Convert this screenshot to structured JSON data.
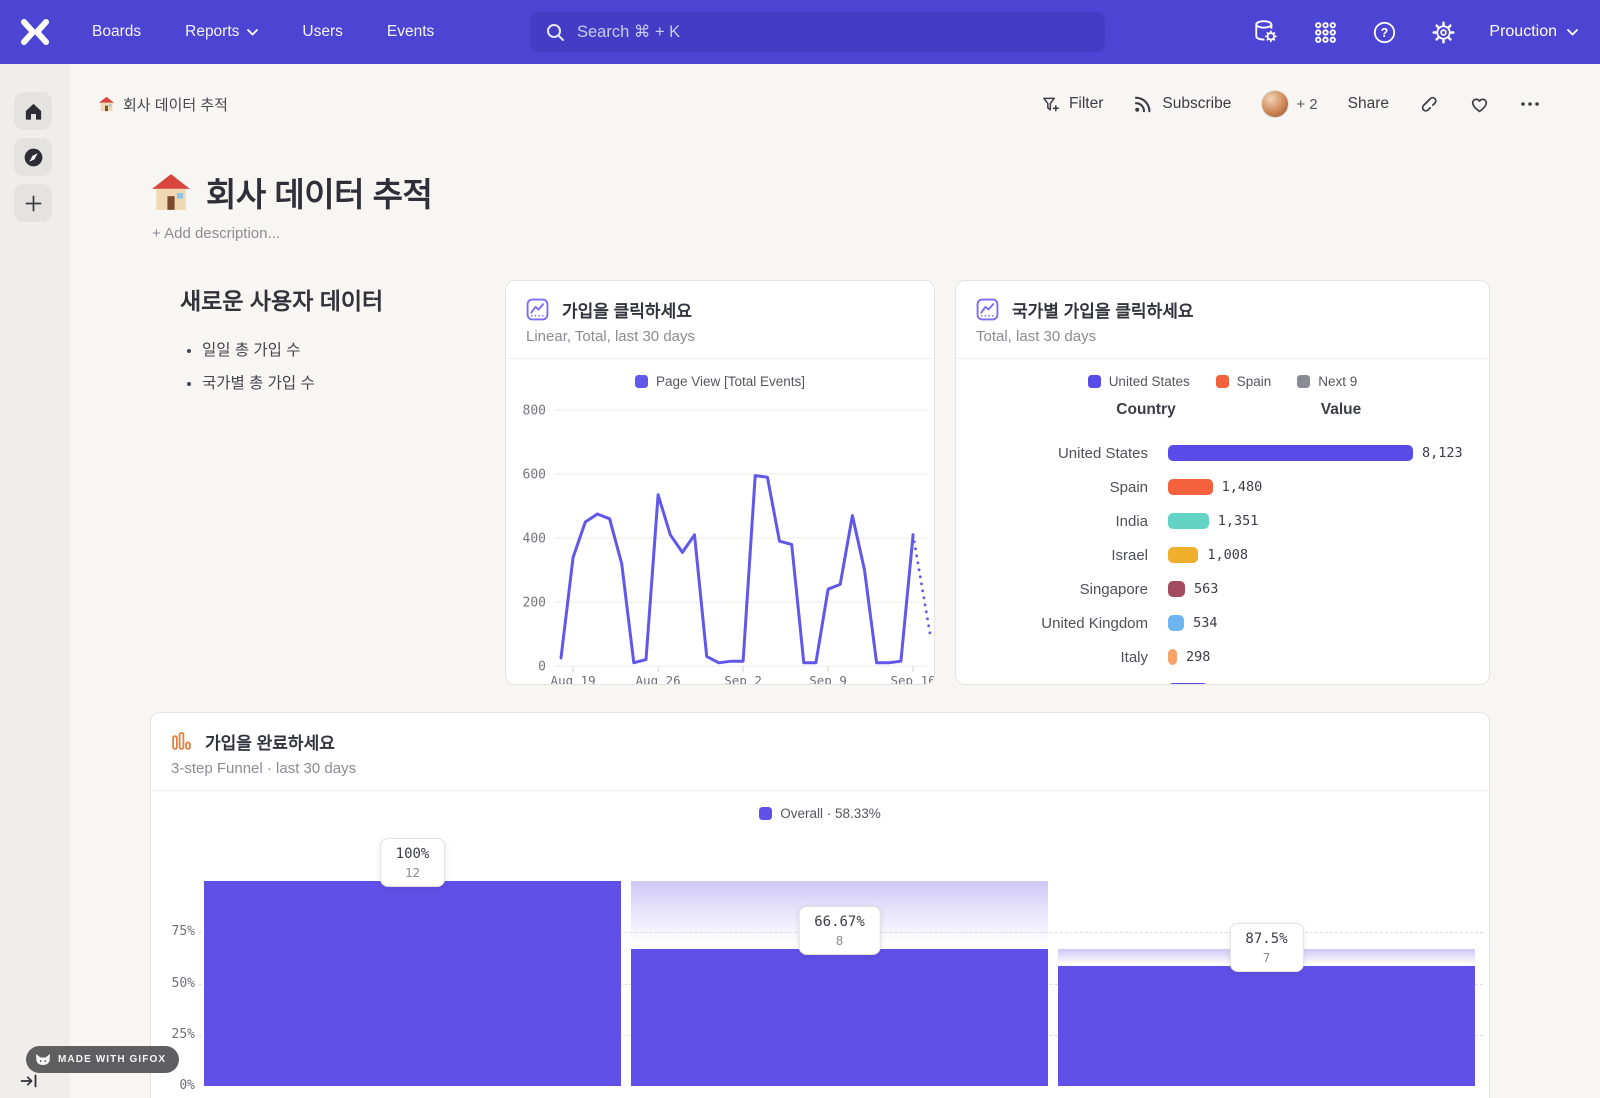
{
  "nav": {
    "items": [
      {
        "label": "Boards"
      },
      {
        "label": "Reports"
      },
      {
        "label": "Users"
      },
      {
        "label": "Events"
      }
    ],
    "search_placeholder": "Search  ⌘ + K",
    "project": "Prouction",
    "bg_color": "#4C45D4"
  },
  "board_bar": {
    "breadcrumb": "회사 데이터 추적",
    "filter": "Filter",
    "subscribe": "Subscribe",
    "avatar_more": "+ 2",
    "share": "Share"
  },
  "page": {
    "title": "회사 데이터 추적",
    "description_placeholder": "+ Add description..."
  },
  "text_card": {
    "heading": "새로운 사용자 데이터",
    "bullets": [
      "일일 총 가입 수",
      "국가별 총 가입 수"
    ]
  },
  "chart_data": [
    {
      "type": "line",
      "title": "가입을 클릭하세요",
      "subtitle": "Linear, Total, last 30 days",
      "legend": "Page View [Total Events]",
      "line_color": "#6157E8",
      "grid": true,
      "ylim": [
        0,
        800
      ],
      "y_ticks": [
        0,
        200,
        400,
        600,
        800
      ],
      "x_tick_labels": [
        "Aug 19",
        "Aug 26",
        "Sep 2",
        "Sep 9",
        "Sep 16"
      ],
      "x_tick_indices": [
        1,
        8,
        15,
        22,
        29
      ],
      "values": [
        25,
        340,
        450,
        475,
        460,
        320,
        10,
        20,
        535,
        410,
        355,
        410,
        30,
        10,
        15,
        15,
        595,
        590,
        390,
        380,
        10,
        10,
        240,
        255,
        470,
        300,
        10,
        10,
        15,
        410
      ],
      "incomplete_tail_value": 100
    },
    {
      "type": "bar",
      "orientation": "horizontal",
      "title": "국가별 가입을 클릭하세요",
      "subtitle": "Total, last 30 days",
      "legend": [
        {
          "label": "United States",
          "color": "#584BE8"
        },
        {
          "label": "Spain",
          "color": "#F4613D"
        },
        {
          "label": "Next 9",
          "color": "#8A8A93"
        }
      ],
      "columns": [
        "Country",
        "Value"
      ],
      "xmax": 8123,
      "rows": [
        {
          "label": "United States",
          "value": 8123,
          "value_label": "8,123",
          "color": "#584BE8"
        },
        {
          "label": "Spain",
          "value": 1480,
          "value_label": "1,480",
          "color": "#F4613D"
        },
        {
          "label": "India",
          "value": 1351,
          "value_label": "1,351",
          "color": "#62D3C4"
        },
        {
          "label": "Israel",
          "value": 1008,
          "value_label": "1,008",
          "color": "#EFAF2D"
        },
        {
          "label": "Singapore",
          "value": 563,
          "value_label": "563",
          "color": "#A34B60"
        },
        {
          "label": "United Kingdom",
          "value": 534,
          "value_label": "534",
          "color": "#6FB5F1"
        },
        {
          "label": "Italy",
          "value": 298,
          "value_label": "298",
          "color": "#F8A468"
        }
      ]
    },
    {
      "type": "bar",
      "variant": "funnel",
      "title": "가입을 완료하세요",
      "subtitle": "3-step Funnel · last 30 days",
      "legend": "Overall · 58.33%",
      "bar_color": "#6050E8",
      "y_ticks": [
        "0%",
        "25%",
        "50%",
        "75%"
      ],
      "steps": [
        {
          "overall_pct": 100,
          "step_label": "100%",
          "count": 12
        },
        {
          "overall_pct": 66.67,
          "step_label": "66.67%",
          "count": 8,
          "prev_overall_pct": 100
        },
        {
          "overall_pct": 58.33,
          "step_label": "87.5%",
          "count": 7,
          "prev_overall_pct": 66.67
        }
      ]
    }
  ],
  "gifox": {
    "label": "MADE WITH GIFOX"
  }
}
